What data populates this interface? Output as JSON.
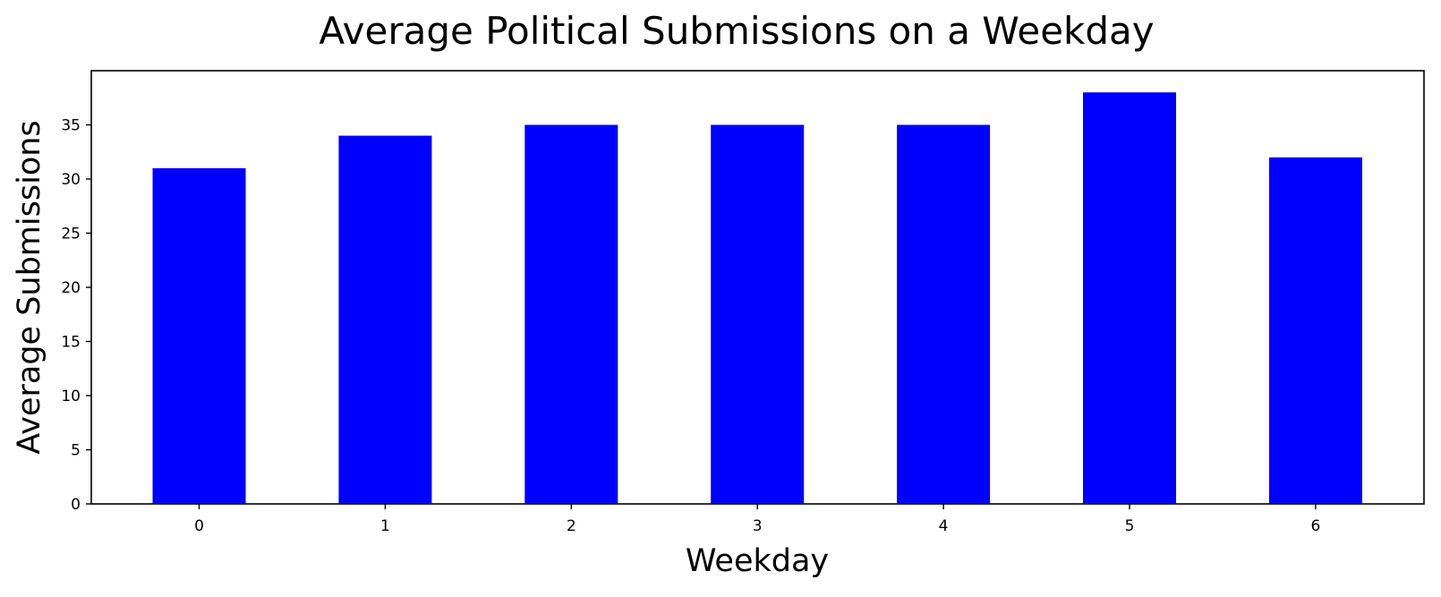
{
  "chart_data": {
    "type": "bar",
    "title": "Average Political Submissions on a Weekday",
    "xlabel": "Weekday",
    "ylabel": "Average Submissions",
    "categories": [
      "0",
      "1",
      "2",
      "3",
      "4",
      "5",
      "6"
    ],
    "values": [
      31,
      34,
      35,
      35,
      35,
      38,
      32
    ],
    "ylim": [
      0,
      40
    ],
    "yticks": [
      "0",
      "5",
      "10",
      "15",
      "20",
      "25",
      "30",
      "35"
    ],
    "grid": false,
    "legend": "none",
    "bar_color": "#0000ff"
  }
}
